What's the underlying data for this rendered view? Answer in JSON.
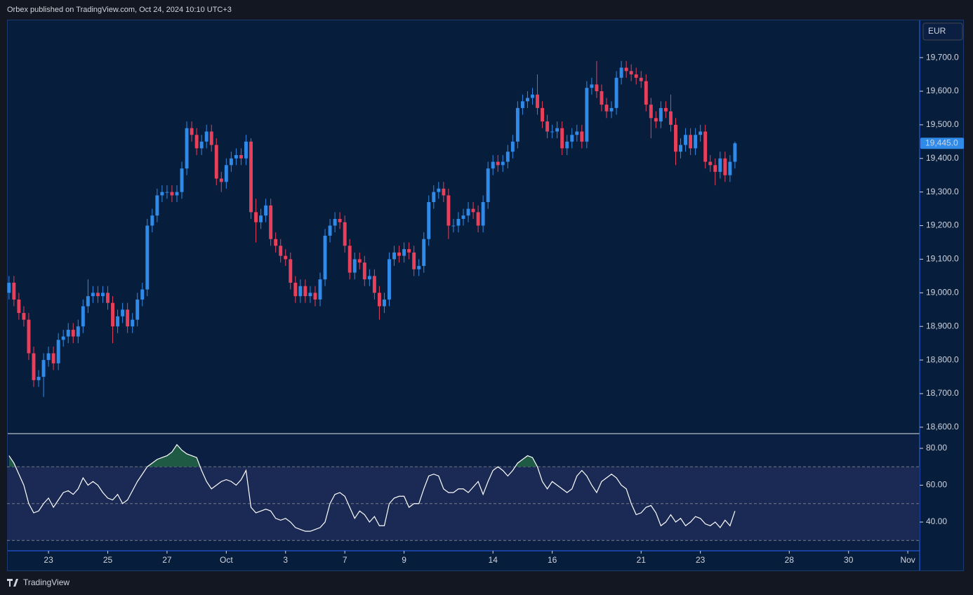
{
  "header": {
    "text": "Orbex published on TradingView.com, Oct 24, 2024 10:10 UTC+3"
  },
  "footer": {
    "text": "TradingView"
  },
  "chart_data": [
    {
      "type": "candlestick",
      "currency": "EUR",
      "up_color": "#2f8ae8",
      "down_color": "#e8405a",
      "x": [
        0,
        1,
        2,
        3,
        4,
        5,
        6,
        7,
        8,
        9,
        10,
        11,
        12,
        13,
        14,
        15,
        16,
        17,
        18,
        19,
        20,
        21,
        22,
        23,
        24,
        25,
        26,
        27,
        28,
        29,
        30,
        31,
        32,
        33,
        34,
        35,
        36,
        37,
        38,
        39,
        40,
        41,
        42,
        43,
        44,
        45,
        46,
        47,
        48,
        49,
        50,
        51,
        52,
        53,
        54,
        55,
        56,
        57,
        58,
        59,
        60,
        61,
        62,
        63,
        64,
        65,
        66,
        67,
        68,
        69,
        70,
        71,
        72,
        73,
        74,
        75,
        76,
        77,
        78,
        79,
        80,
        81,
        82,
        83,
        84,
        85,
        86,
        87,
        88,
        89,
        90,
        91,
        92,
        93,
        94,
        95,
        96,
        97,
        98,
        99,
        100,
        101,
        102,
        103,
        104,
        105,
        106,
        107,
        108,
        109,
        110,
        111,
        112,
        113,
        114,
        115,
        116,
        117,
        118,
        119,
        120,
        121,
        122,
        123,
        124,
        125,
        126,
        127,
        128,
        129,
        130,
        131,
        132,
        133,
        134,
        135,
        136,
        137,
        138,
        139,
        140,
        141,
        142,
        143,
        144,
        145,
        146,
        147
      ],
      "open": [
        19000,
        19030,
        18980,
        18940,
        18920,
        18820,
        18740,
        18750,
        18800,
        18820,
        18790,
        18860,
        18870,
        18890,
        18870,
        18900,
        18960,
        18990,
        19000,
        18990,
        19000,
        18970,
        18900,
        18930,
        18950,
        18900,
        18920,
        18980,
        19010,
        19200,
        19230,
        19290,
        19300,
        19300,
        19290,
        19300,
        19370,
        19490,
        19470,
        19430,
        19450,
        19480,
        19440,
        19340,
        19330,
        19380,
        19400,
        19410,
        19400,
        19450,
        19240,
        19210,
        19230,
        19260,
        19160,
        19140,
        19110,
        19100,
        19030,
        18990,
        19020,
        18990,
        19000,
        18980,
        19040,
        19170,
        19200,
        19220,
        19210,
        19140,
        19060,
        19100,
        19090,
        19040,
        19050,
        19000,
        18960,
        18980,
        19100,
        19120,
        19110,
        19130,
        19120,
        19070,
        19080,
        19160,
        19270,
        19300,
        19310,
        19290,
        19200,
        19200,
        19220,
        19230,
        19250,
        19240,
        19200,
        19270,
        19370,
        19390,
        19380,
        19390,
        19420,
        19450,
        19550,
        19570,
        19580,
        19590,
        19550,
        19510,
        19480,
        19480,
        19490,
        19430,
        19450,
        19470,
        19480,
        19450,
        19610,
        19620,
        19600,
        19560,
        19540,
        19550,
        19640,
        19670,
        19660,
        19650,
        19640,
        19630,
        19560,
        19520,
        19510,
        19550,
        19540,
        19500,
        19420,
        19440,
        19470,
        19430,
        19470,
        19480,
        19390,
        19380,
        19360,
        19400,
        19350,
        19390
      ],
      "high": [
        19050,
        19050,
        19000,
        18960,
        18940,
        18840,
        18770,
        18820,
        18840,
        18840,
        18880,
        18890,
        18910,
        18910,
        18920,
        18980,
        19040,
        19020,
        19020,
        19020,
        19020,
        18990,
        18950,
        18970,
        18970,
        18940,
        19000,
        19030,
        19220,
        19250,
        19310,
        19320,
        19320,
        19320,
        19320,
        19390,
        19510,
        19510,
        19490,
        19470,
        19500,
        19500,
        19460,
        19360,
        19400,
        19420,
        19430,
        19430,
        19470,
        19460,
        19280,
        19250,
        19280,
        19280,
        19180,
        19160,
        19130,
        19120,
        19050,
        19040,
        19040,
        19020,
        19020,
        19060,
        19190,
        19220,
        19240,
        19240,
        19230,
        19160,
        19120,
        19120,
        19110,
        19070,
        19070,
        19020,
        19000,
        19120,
        19140,
        19140,
        19150,
        19150,
        19140,
        19100,
        19180,
        19290,
        19320,
        19330,
        19330,
        19310,
        19220,
        19240,
        19250,
        19270,
        19270,
        19260,
        19290,
        19390,
        19410,
        19410,
        19410,
        19440,
        19470,
        19570,
        19590,
        19600,
        19610,
        19650,
        19570,
        19530,
        19500,
        19510,
        19510,
        19470,
        19490,
        19500,
        19500,
        19630,
        19640,
        19690,
        19620,
        19580,
        19570,
        19660,
        19690,
        19690,
        19680,
        19670,
        19660,
        19650,
        19580,
        19540,
        19570,
        19570,
        19590,
        19520,
        19460,
        19490,
        19490,
        19490,
        19500,
        19500,
        19410,
        19400,
        19420,
        19420,
        19410,
        19450
      ],
      "low": [
        18980,
        18960,
        18920,
        18900,
        18800,
        18720,
        18720,
        18690,
        18780,
        18770,
        18770,
        18840,
        18850,
        18850,
        18850,
        18880,
        18940,
        18970,
        18970,
        18970,
        18950,
        18850,
        18880,
        18910,
        18880,
        18880,
        18900,
        18960,
        18990,
        19180,
        19210,
        19270,
        19280,
        19270,
        19270,
        19280,
        19350,
        19450,
        19410,
        19410,
        19430,
        19420,
        19320,
        19300,
        19310,
        19360,
        19380,
        19380,
        19380,
        19220,
        19150,
        19190,
        19210,
        19140,
        19120,
        19090,
        19080,
        19010,
        18970,
        18970,
        18970,
        18970,
        18960,
        18960,
        19020,
        19150,
        19180,
        19190,
        19120,
        19040,
        19040,
        19070,
        19020,
        19020,
        18980,
        18920,
        18940,
        18960,
        19080,
        19090,
        19090,
        19100,
        19050,
        19050,
        19060,
        19140,
        19250,
        19280,
        19270,
        19160,
        19180,
        19180,
        19200,
        19210,
        19220,
        19180,
        19180,
        19250,
        19350,
        19360,
        19360,
        19370,
        19400,
        19430,
        19530,
        19550,
        19560,
        19530,
        19490,
        19460,
        19460,
        19460,
        19410,
        19410,
        19430,
        19450,
        19430,
        19430,
        19590,
        19580,
        19540,
        19520,
        19520,
        19530,
        19620,
        19640,
        19630,
        19620,
        19610,
        19540,
        19460,
        19490,
        19490,
        19520,
        19480,
        19380,
        19400,
        19420,
        19410,
        19410,
        19450,
        19370,
        19360,
        19320,
        19340,
        19330,
        19330,
        19370
      ],
      "close": [
        19030,
        18980,
        18940,
        18920,
        18820,
        18740,
        18750,
        18800,
        18820,
        18790,
        18860,
        18870,
        18890,
        18870,
        18900,
        18960,
        18990,
        19000,
        18990,
        19000,
        18970,
        18900,
        18930,
        18950,
        18900,
        18920,
        18980,
        19010,
        19200,
        19230,
        19290,
        19300,
        19300,
        19290,
        19300,
        19370,
        19490,
        19470,
        19430,
        19450,
        19480,
        19440,
        19340,
        19330,
        19380,
        19400,
        19410,
        19400,
        19450,
        19240,
        19210,
        19230,
        19260,
        19160,
        19140,
        19110,
        19100,
        19030,
        18990,
        19020,
        18990,
        19000,
        18980,
        19040,
        19170,
        19200,
        19220,
        19210,
        19140,
        19060,
        19100,
        19090,
        19040,
        19050,
        19000,
        18960,
        18980,
        19100,
        19120,
        19110,
        19130,
        19120,
        19070,
        19080,
        19160,
        19270,
        19300,
        19310,
        19290,
        19200,
        19200,
        19220,
        19230,
        19250,
        19240,
        19200,
        19270,
        19370,
        19390,
        19380,
        19390,
        19420,
        19450,
        19550,
        19570,
        19580,
        19590,
        19550,
        19510,
        19480,
        19480,
        19490,
        19430,
        19450,
        19470,
        19480,
        19450,
        19610,
        19620,
        19600,
        19560,
        19540,
        19550,
        19640,
        19670,
        19660,
        19650,
        19640,
        19630,
        19560,
        19520,
        19510,
        19550,
        19540,
        19500,
        19420,
        19440,
        19470,
        19430,
        19470,
        19480,
        19390,
        19380,
        19360,
        19400,
        19350,
        19390,
        19445
      ],
      "last_price": {
        "value": 19445,
        "label": "19,445.0"
      },
      "xlim": [
        -0.4,
        184.4
      ],
      "ylim": [
        18583,
        19813
      ],
      "yticks": [
        {
          "value": 18600,
          "label": "18,600.0"
        },
        {
          "value": 18700,
          "label": "18,700.0"
        },
        {
          "value": 18800,
          "label": "18,800.0"
        },
        {
          "value": 18900,
          "label": "18,900.0"
        },
        {
          "value": 19000,
          "label": "19,000.0"
        },
        {
          "value": 19100,
          "label": "19,100.0"
        },
        {
          "value": 19200,
          "label": "19,200.0"
        },
        {
          "value": 19300,
          "label": "19,300.0"
        },
        {
          "value": 19400,
          "label": "19,400.0"
        },
        {
          "value": 19500,
          "label": "19,500.0"
        },
        {
          "value": 19600,
          "label": "19,600.0"
        },
        {
          "value": 19700,
          "label": "19,700.0"
        }
      ]
    },
    {
      "type": "line",
      "color": "#ffffff",
      "band_color": "#1a2a55",
      "overbought_color": "#1f5a45",
      "x": [
        0,
        1,
        2,
        3,
        4,
        5,
        6,
        7,
        8,
        9,
        10,
        11,
        12,
        13,
        14,
        15,
        16,
        17,
        18,
        19,
        20,
        21,
        22,
        23,
        24,
        25,
        26,
        27,
        28,
        29,
        30,
        31,
        32,
        33,
        34,
        35,
        36,
        37,
        38,
        39,
        40,
        41,
        42,
        43,
        44,
        45,
        46,
        47,
        48,
        49,
        50,
        51,
        52,
        53,
        54,
        55,
        56,
        57,
        58,
        59,
        60,
        61,
        62,
        63,
        64,
        65,
        66,
        67,
        68,
        69,
        70,
        71,
        72,
        73,
        74,
        75,
        76,
        77,
        78,
        79,
        80,
        81,
        82,
        83,
        84,
        85,
        86,
        87,
        88,
        89,
        90,
        91,
        92,
        93,
        94,
        95,
        96,
        97,
        98,
        99,
        100,
        101,
        102,
        103,
        104,
        105,
        106,
        107,
        108,
        109,
        110,
        111,
        112,
        113,
        114,
        115,
        116,
        117,
        118,
        119,
        120,
        121,
        122,
        123,
        124,
        125,
        126,
        127,
        128,
        129,
        130,
        131,
        132,
        133,
        134,
        135,
        136,
        137,
        138,
        139,
        140,
        141,
        142,
        143,
        144,
        145,
        146,
        147
      ],
      "values": [
        76,
        72,
        66,
        60,
        50,
        45,
        46,
        50,
        53,
        48,
        52,
        56,
        57,
        55,
        58,
        64,
        60,
        62,
        60,
        56,
        53,
        52,
        55,
        50,
        52,
        57,
        62,
        66,
        70,
        72,
        74,
        75,
        76,
        78,
        82,
        79,
        77,
        76,
        75,
        68,
        62,
        58,
        60,
        62,
        63,
        62,
        60,
        63,
        68,
        48,
        45,
        46,
        47,
        46,
        42,
        41,
        42,
        40,
        37,
        36,
        35,
        35,
        36,
        37,
        40,
        50,
        55,
        56,
        54,
        48,
        42,
        46,
        44,
        40,
        43,
        38,
        38,
        50,
        53,
        54,
        54,
        48,
        50,
        50,
        58,
        65,
        66,
        65,
        58,
        56,
        56,
        58,
        58,
        56,
        59,
        62,
        55,
        62,
        68,
        70,
        68,
        65,
        68,
        72,
        74,
        76,
        75,
        70,
        62,
        58,
        62,
        60,
        58,
        56,
        58,
        65,
        68,
        65,
        60,
        56,
        62,
        64,
        66,
        64,
        60,
        58,
        50,
        44,
        45,
        48,
        49,
        45,
        38,
        40,
        44,
        40,
        42,
        38,
        40,
        43,
        42,
        39,
        38,
        40,
        37,
        41,
        38,
        46
      ],
      "levels": [
        70,
        50,
        30
      ],
      "xlim": [
        -0.4,
        184.4
      ],
      "ylim": [
        24.4,
        87.6
      ],
      "yticks": [
        {
          "value": 40,
          "label": "40.00"
        },
        {
          "value": 60,
          "label": "60.00"
        },
        {
          "value": 80,
          "label": "80.00"
        }
      ],
      "xticks": [
        {
          "value": 8,
          "label": "23"
        },
        {
          "value": 20,
          "label": "25"
        },
        {
          "value": 32,
          "label": "27"
        },
        {
          "value": 44,
          "label": "Oct"
        },
        {
          "value": 56,
          "label": "3"
        },
        {
          "value": 68,
          "label": "7"
        },
        {
          "value": 80,
          "label": "9"
        },
        {
          "value": 98,
          "label": "14"
        },
        {
          "value": 110,
          "label": "16"
        },
        {
          "value": 128,
          "label": "21"
        },
        {
          "value": 140,
          "label": "23"
        },
        {
          "value": 158,
          "label": "28"
        },
        {
          "value": 170,
          "label": "30"
        },
        {
          "value": 182,
          "label": "Nov"
        }
      ]
    }
  ]
}
